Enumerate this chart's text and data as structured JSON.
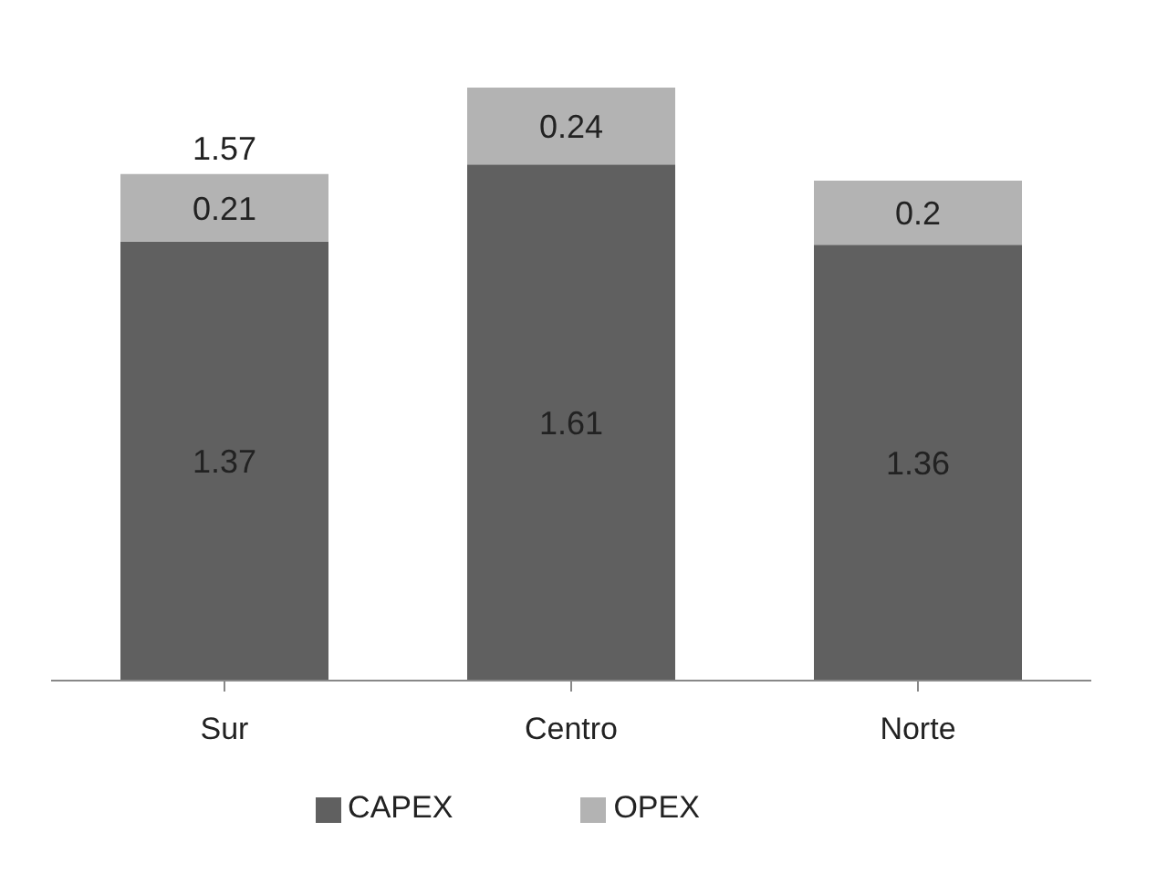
{
  "chart_data": {
    "type": "bar",
    "stacked": true,
    "categories": [
      "Sur",
      "Centro",
      "Norte"
    ],
    "series": [
      {
        "name": "CAPEX",
        "color": "#606060",
        "values": [
          1.37,
          1.61,
          1.36
        ]
      },
      {
        "name": "OPEX",
        "color": "#b3b3b3",
        "values": [
          0.21,
          0.24,
          0.2
        ]
      }
    ],
    "data_labels": true,
    "totals": [
      "1.57",
      null,
      null
    ],
    "legend": "bottom",
    "grid": false
  }
}
